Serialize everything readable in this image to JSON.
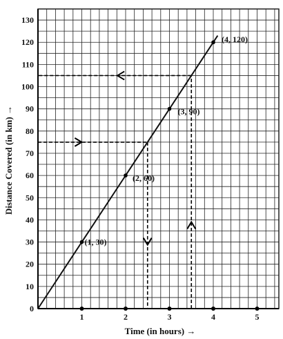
{
  "chart_data": {
    "type": "line",
    "title": "",
    "xlabel": "Time (in hours) →",
    "ylabel": "Distance Covered (in km) →",
    "xlim": [
      0,
      5.5
    ],
    "ylim": [
      0,
      135
    ],
    "x_ticks": [
      1,
      2,
      3,
      4,
      5
    ],
    "y_ticks": [
      0,
      10,
      20,
      30,
      40,
      50,
      60,
      70,
      80,
      90,
      100,
      110,
      120,
      130
    ],
    "grid": true,
    "minor_grid_step": {
      "x": 0.2,
      "y": 5
    },
    "series": [
      {
        "x": [
          0,
          1,
          2,
          3,
          4,
          4.1
        ],
        "y": [
          0,
          30,
          60,
          90,
          120,
          123
        ],
        "color": "#111111"
      }
    ],
    "labeled_points": [
      {
        "x": 1,
        "y": 30,
        "label": "(1, 30)"
      },
      {
        "x": 2,
        "y": 60,
        "label": "(2, 60)"
      },
      {
        "x": 3,
        "y": 90,
        "label": "(3, 90)"
      },
      {
        "x": 4,
        "y": 120,
        "label": "(4, 120)"
      }
    ],
    "axis_dots": [
      1,
      2,
      3,
      4,
      5
    ],
    "guides": [
      {
        "from": "y-axis",
        "y": 75,
        "to_x": 2.5,
        "direction": "right-then-down"
      },
      {
        "from": "x-axis",
        "x": 3.5,
        "to_y": 105,
        "direction": "up-then-left"
      }
    ]
  }
}
